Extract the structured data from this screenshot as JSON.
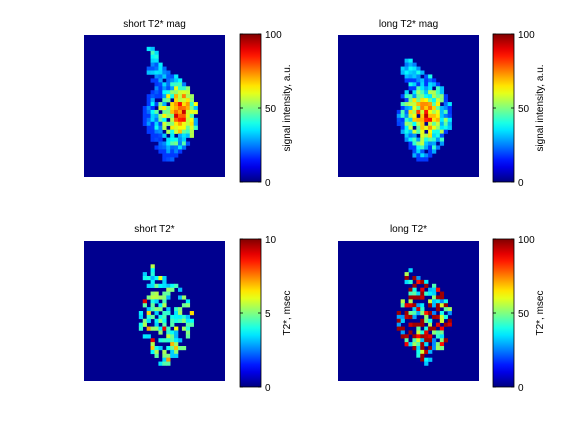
{
  "figure": {
    "background": "#ffffff"
  },
  "chart_data": [
    {
      "type": "heatmap",
      "title": "short T2* mag",
      "colormap": "jet",
      "background_color": "#00008f",
      "colorbar": {
        "label": "signal intensity, a.u.",
        "min": 0,
        "max": 100,
        "ticks": [
          0,
          50,
          100
        ]
      },
      "pattern": "A"
    },
    {
      "type": "heatmap",
      "title": "long T2* mag",
      "colormap": "jet",
      "background_color": "#00008f",
      "colorbar": {
        "label": "signal intensity, a.u.",
        "min": 0,
        "max": 100,
        "ticks": [
          0,
          50,
          100
        ]
      },
      "pattern": "B"
    },
    {
      "type": "heatmap",
      "title": "short T2*",
      "colormap": "jet",
      "background_color": "#00008f",
      "colorbar": {
        "label": "T2*, msec",
        "min": 0,
        "max": 10,
        "ticks": [
          0,
          5,
          10
        ]
      },
      "pattern": "C"
    },
    {
      "type": "heatmap",
      "title": "long T2*",
      "colormap": "jet",
      "background_color": "#00008f",
      "colorbar": {
        "label": "T2*, msec",
        "min": 0,
        "max": 100,
        "ticks": [
          0,
          50,
          100
        ]
      },
      "pattern": "D"
    }
  ]
}
